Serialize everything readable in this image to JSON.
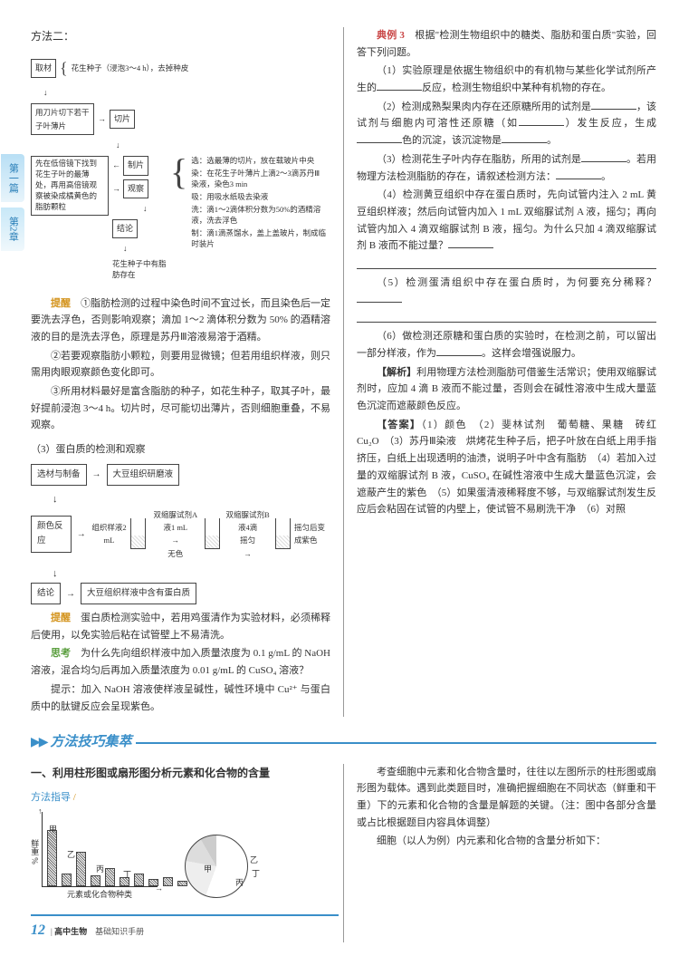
{
  "sideTabs": {
    "tab1": "第一篇",
    "tab2": "第2章"
  },
  "left": {
    "methodTitle": "方法二：",
    "flow": {
      "b1": "取材",
      "b1_note": "花生种子（浸泡3～4 h），去掉种皮",
      "b2": "用刀片切下若干子叶薄片",
      "b2_r": "切片",
      "b3": "先在低倍镜下找到花生子叶的最薄处，再用高倍镜观察被染成橘黄色的脂肪颗粒",
      "b3_r1": "制片",
      "b3_r2": "观察",
      "b3_r3": "结论",
      "b3_end": "花生种子中有脂肪存在",
      "steps": {
        "s1": "选：选最薄的切片，放在载玻片中央",
        "s2": "染：在花生子叶薄片上滴2～3滴苏丹Ⅲ染液，染色3 min",
        "s3": "吸：用吸水纸吸去染液",
        "s4": "洗：滴1～2滴体积分数为50%的酒精溶液，洗去浮色",
        "s5": "制：滴1滴蒸馏水，盖上盖玻片，制成临时装片"
      }
    },
    "tixing_label": "提醒",
    "tixing": [
      "①脂肪检测的过程中染色时间不宜过长，而且染色后一定要洗去浮色，否则影响观察；滴加 1～2 滴体积分数为 50% 的酒精溶液的目的是洗去浮色，原理是苏丹Ⅲ溶液易溶于酒精。",
      "②若要观察脂肪小颗粒，则要用显微镜；但若用组织样液，则只需用肉眼观察颜色变化即可。",
      "③所用材料最好是富含脂肪的种子，如花生种子，取其子叶，最好提前浸泡 3～4 h。切片时，尽可能切出薄片，否则细胞重叠，不易观察。"
    ],
    "proteinTitle": "（3）蛋白质的检测和观察",
    "protein": {
      "box1": "选材与制备",
      "box1_r": "大豆组织研磨液",
      "box2": "颜色反应",
      "mid_l1": "组织样液2 mL",
      "mid_l2": "双缩脲试剂A液1 mL",
      "mid_l3": "无色",
      "mid_r1": "双缩脲试剂B液4滴",
      "mid_r2": "摇匀",
      "mid_r3": "摇匀后变成紫色",
      "box3": "结论",
      "box3_r": "大豆组织样液中含有蛋白质"
    },
    "tixing2": "蛋白质检测实验中，若用鸡蛋清作为实验材料，必须稀释后使用，以免实验后粘在试管壁上不易清洗。",
    "sikao_label": "思考",
    "sikao": [
      "为什么先向组织样液中加入质量浓度为 0.1 g/mL 的 NaOH 溶液，混合均匀后再加入质量浓度为 0.01 g/mL 的 CuSO₄ 溶液？",
      "提示：加入 NaOH 溶液使样液呈碱性，碱性环境中 Cu²⁺ 与蛋白质中的肽键反应会呈现紫色。"
    ]
  },
  "right": {
    "dianli_label": "典例 3",
    "dianli_intro": "根据\"检测生物组织中的糖类、脂肪和蛋白质\"实验，回答下列问题。",
    "q1": "（1）实验原理是依据生物组织中的有机物与某些化学试剂所产生的________反应，检测生物组织中某种有机物的存在。",
    "q2": "（2）检测成熟梨果肉内存在还原糖所用的试剂是________，该试剂与细胞内可溶性还原糖（如________）发生反应，生成________色的沉淀，该沉淀物是________。",
    "q3": "（3）检测花生子叶内存在脂肪，所用的试剂是________。若用物理方法检测脂肪的存在，请叙述检测方法：________。",
    "q4": "（4）检测黄豆组织中存在蛋白质时，先向试管内注入 2 mL 黄豆组织样液；然后向试管内加入 1 mL 双缩脲试剂 A 液，摇匀；再向试管内加入 4 滴双缩脲试剂 B 液，摇匀。为什么只加 4 滴双缩脲试剂 B 液而不能过量？________",
    "q5": "（5）检测蛋清组织中存在蛋白质时，为何要充分稀释？________",
    "q6": "（6）做检测还原糖和蛋白质的实验时，在检测之前，可以留出一部分样液，作为________。这样会增强说服力。",
    "jiexi_label": "【解析】",
    "jiexi": "利用物理方法检测脂肪可借鉴生活常识；使用双缩脲试剂时，应加 4 滴 B 液而不能过量，否则会在碱性溶液中生成大量蓝色沉淀而遮蔽颜色反应。",
    "daan_label": "【答案】",
    "daan": "（1）颜色　（2）斐林试剂　葡萄糖、果糖　砖红　Cu₂O　（3）苏丹Ⅲ染液　烘烤花生种子后，把子叶放在白纸上用手指挤压，白纸上出现透明的油渍，说明子叶中含有脂肪　（4）若加入过量的双缩脲试剂 B 液，CuSO₄ 在碱性溶液中生成大量蓝色沉淀，会遮蔽产生的紫色　（5）如果蛋清液稀释度不够，与双缩脲试剂发生反应后会粘固在试管的内壁上，使试管不易刷洗干净　（6）对照"
  },
  "section2": {
    "title": "方法技巧集萃",
    "h1": "一、利用柱形图或扇形图分析元素和化合物的含量",
    "guide": "方法指导",
    "barLabels": {
      "jia": "甲",
      "yi": "乙",
      "bing": "丙",
      "ding": "丁"
    },
    "yLabel": "鲜重 %",
    "xLabel": "元素或化合物种类",
    "pieLabels": {
      "jia": "甲",
      "yi": "乙",
      "bing": "丙",
      "ding": "丁"
    },
    "rightText": [
      "考查细胞中元素和化合物含量时，往往以左图所示的柱形图或扇形图为载体。遇到此类题目时，准确把握细胞在不同状态（鲜重和干重）下的元素和化合物的含量是解题的关键。（注：图中各部分含量或占比根据题目内容具体调整）",
      "细胞（以人为例）内元素和化合物的含量分析如下："
    ]
  },
  "barHeights": [
    62,
    14,
    38,
    12,
    20,
    10,
    14,
    8,
    10,
    6
  ],
  "footer": {
    "num": "12",
    "text1": "高中生物",
    "text2": "基础知识手册"
  }
}
